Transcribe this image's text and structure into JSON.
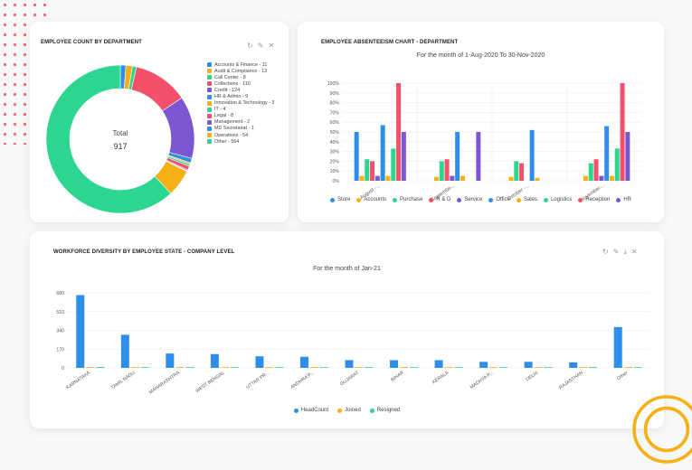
{
  "card1": {
    "title": "EMPLOYEE COUNT BY DEPARTMENT",
    "center_label": "Total",
    "center_value": "917",
    "icons": [
      "refresh-icon",
      "edit-icon",
      "close-icon"
    ]
  },
  "card2": {
    "title": "EMPLOYEE ABSENTEEISM CHART - DEPARTMENT",
    "subtitle": "For the month of 1-Aug-2020 To 30-Nov-2020"
  },
  "card3": {
    "title": "WORKFORCE DIVERSITY BY EMPLOYEE STATE - COMPANY LEVEL",
    "subtitle": "For the month of Jan-21",
    "icons": [
      "refresh-icon",
      "edit-icon",
      "download-icon",
      "close-icon"
    ]
  },
  "chart_data": [
    {
      "type": "pie",
      "title": "EMPLOYEE COUNT BY DEPARTMENT",
      "total": 917,
      "categories": [
        "Accounts & Finance",
        "Audit & Compliance",
        "Call Center",
        "Collections",
        "Credit",
        "HR & Admin",
        "Innovation & Technology",
        "IT",
        "Legal",
        "Management",
        "MD Secretariat",
        "Operations",
        "Other"
      ],
      "legend": [
        "Accounts & Finance - 11",
        "Audit & Compliance - 13",
        "Call Center - 8",
        "Collections - 110",
        "Credit - 124",
        "HR & Admin - 9",
        "Innovation & Technology - 3",
        "IT - 4",
        "Legal - 8",
        "Management - 2",
        "MD Secretariat - 1",
        "Operations - 54",
        "Other - 564"
      ],
      "values": [
        11,
        13,
        8,
        110,
        124,
        9,
        3,
        4,
        8,
        2,
        1,
        54,
        564
      ],
      "colors": [
        "#2f8fe8",
        "#f5b016",
        "#2dd68f",
        "#f2506b",
        "#7b57d1",
        "#2f8fe8",
        "#f5b016",
        "#2dd68f",
        "#f2506b",
        "#7b57d1",
        "#2f8fe8",
        "#f5b016",
        "#2dd68f"
      ]
    },
    {
      "type": "bar",
      "title": "EMPLOYEE ABSENTEEISM CHART - DEPARTMENT",
      "subtitle": "For the month of 1-Aug-2020 To 30-Nov-2020",
      "categories": [
        "August -...",
        "Septembe...",
        "October -...",
        "November..."
      ],
      "yticks": [
        "0%",
        "10%",
        "20%",
        "30%",
        "40%",
        "50%",
        "60%",
        "70%",
        "80%",
        "90%",
        "100%"
      ],
      "ylim": [
        0,
        100
      ],
      "series": [
        {
          "name": "Store",
          "color": "#2f8fe8",
          "values": [
            50,
            0,
            0,
            0
          ]
        },
        {
          "name": "Accounts",
          "color": "#f5b016",
          "values": [
            5,
            4,
            4,
            5
          ]
        },
        {
          "name": "Purchase",
          "color": "#2dd68f",
          "values": [
            22,
            20,
            20,
            18
          ]
        },
        {
          "name": "R & D",
          "color": "#f2506b",
          "values": [
            20,
            22,
            18,
            22
          ]
        },
        {
          "name": "Service",
          "color": "#7b57d1",
          "values": [
            5,
            5,
            0,
            5
          ]
        },
        {
          "name": "Office",
          "color": "#2f8fe8",
          "values": [
            57,
            50,
            52,
            56
          ]
        },
        {
          "name": "Sales",
          "color": "#f5b016",
          "values": [
            5,
            5,
            3,
            5
          ]
        },
        {
          "name": "Logistics",
          "color": "#2dd68f",
          "values": [
            33,
            0,
            0,
            33
          ]
        },
        {
          "name": "Reception",
          "color": "#f2506b",
          "values": [
            100,
            0,
            0,
            100
          ]
        },
        {
          "name": "HR",
          "color": "#7b57d1",
          "values": [
            50,
            50,
            0,
            50
          ]
        }
      ]
    },
    {
      "type": "bar",
      "title": "WORKFORCE DIVERSITY BY EMPLOYEE STATE - COMPANY LEVEL",
      "subtitle": "For the month of Jan-21",
      "categories": [
        "KARNATAKA",
        "TAMIL NADU",
        "MAHARASHTRA",
        "WEST BENGAL",
        "UTTAR PR...",
        "ANDHRA P...",
        "GUJARAT",
        "BIHAR",
        "KERALA",
        "MADHYA P...",
        "DELHI",
        "RAJASTHAN",
        "Other"
      ],
      "yticks": [
        "0",
        "170",
        "340",
        "510",
        "680"
      ],
      "ylim": [
        0,
        680
      ],
      "series": [
        {
          "name": "HeadCount",
          "color": "#2f8fe8",
          "values": [
            660,
            300,
            130,
            125,
            105,
            100,
            70,
            70,
            70,
            55,
            55,
            50,
            370
          ]
        },
        {
          "name": "Joined",
          "color": "#f5b016",
          "values": [
            2,
            1,
            1,
            1,
            1,
            1,
            1,
            1,
            1,
            1,
            1,
            1,
            2
          ]
        },
        {
          "name": "Resigned",
          "color": "#2dd68f",
          "values": [
            8,
            4,
            3,
            2,
            2,
            2,
            2,
            2,
            2,
            2,
            2,
            2,
            6
          ]
        }
      ]
    }
  ]
}
